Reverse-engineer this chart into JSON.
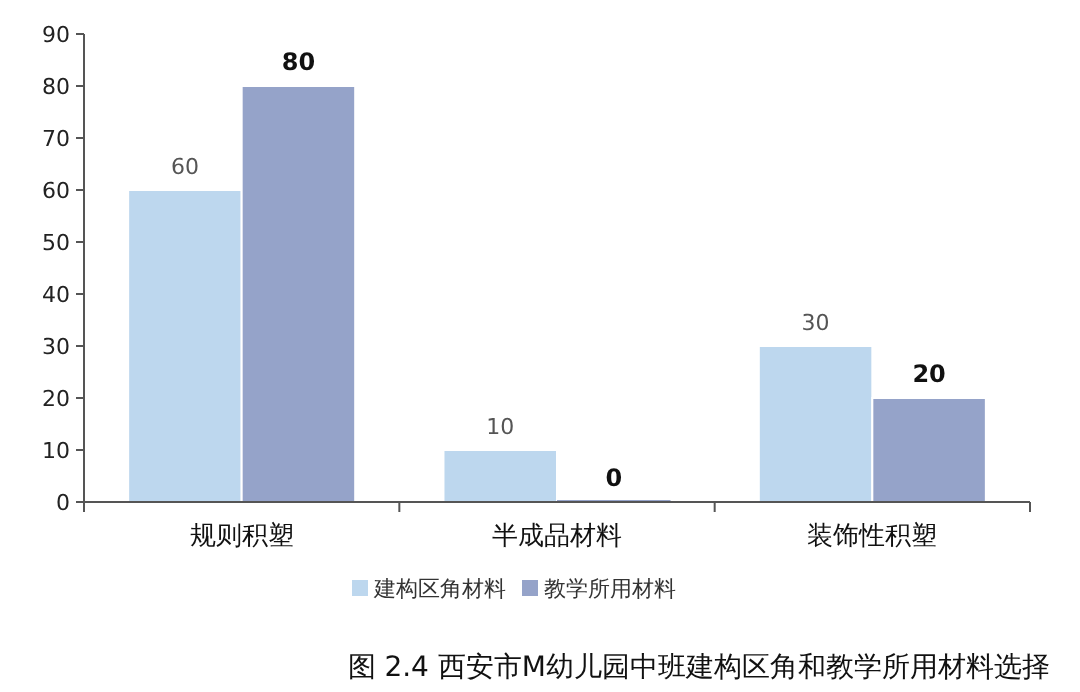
{
  "chart_data": {
    "type": "bar",
    "categories": [
      "规则积塑",
      "半成品材料",
      "装饰性积塑"
    ],
    "series": [
      {
        "name": "建构区角材料",
        "color": "#bdd7ee",
        "values": [
          60,
          10,
          30
        ]
      },
      {
        "name": "教学所用材料",
        "color": "#95a3c9",
        "values": [
          80,
          0,
          20
        ]
      }
    ],
    "ylim": [
      0,
      90
    ],
    "yticks": [
      0,
      10,
      20,
      30,
      40,
      50,
      60,
      70,
      80,
      90
    ],
    "grid": false,
    "legend": "bottom",
    "data_labels": true,
    "annotations": [
      "图 2.4 西安市M幼儿园中班建构区角和教学所用材料选择"
    ]
  }
}
